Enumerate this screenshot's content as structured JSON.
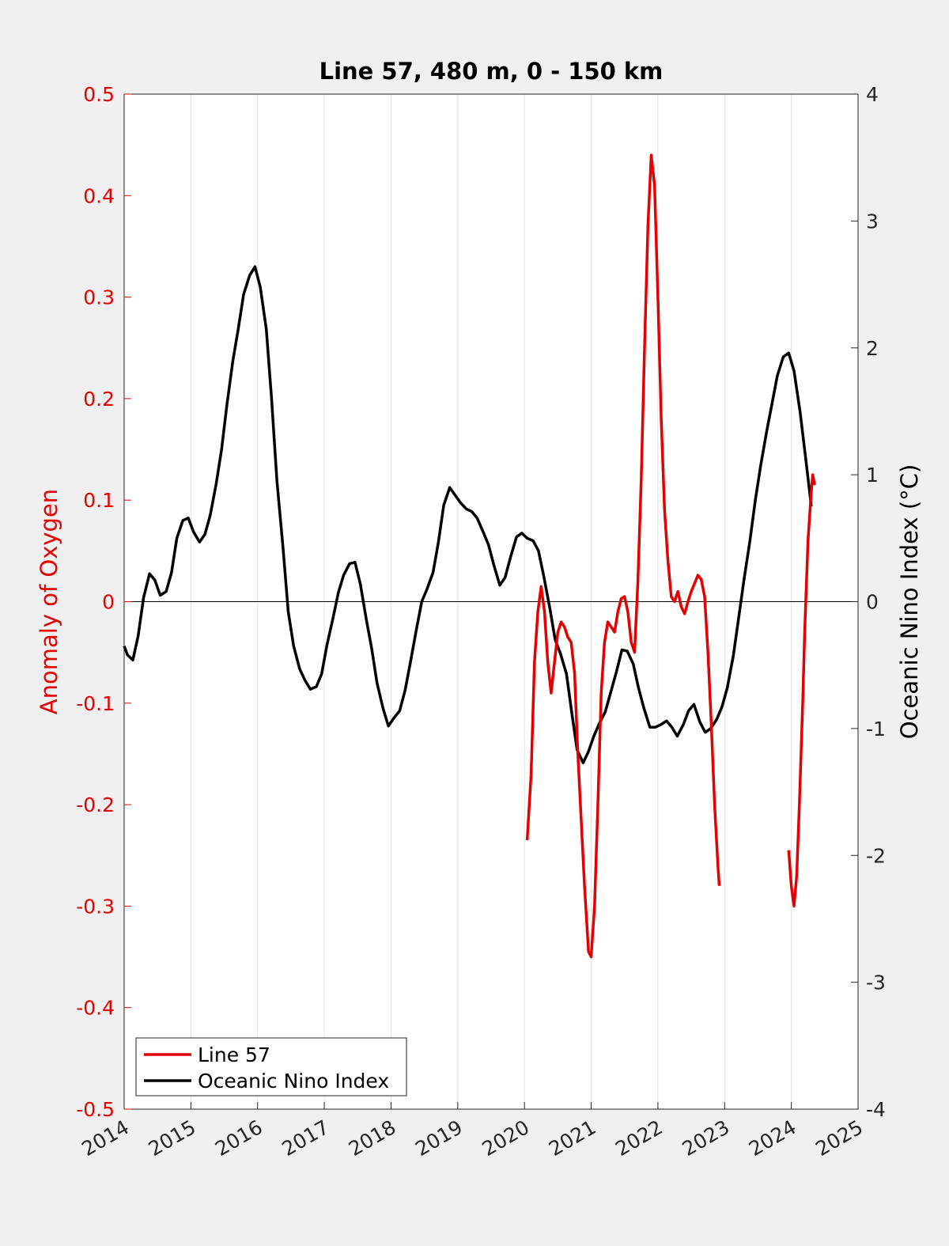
{
  "chart_data": {
    "type": "line",
    "title": "Line 57, 480 m, 0 - 150 km",
    "xlabel": "",
    "ylabel_left": "Anomaly of Oxygen",
    "ylabel_right": "Oceanic Nino Index (°C)",
    "xlim": [
      2014,
      2025
    ],
    "ylim_left": [
      -0.5,
      0.5
    ],
    "ylim_right": [
      -4,
      4
    ],
    "x_ticks": [
      "2014",
      "2015",
      "2016",
      "2017",
      "2018",
      "2019",
      "2020",
      "2021",
      "2022",
      "2023",
      "2024",
      "2025"
    ],
    "y_ticks_left": [
      "0.5",
      "0.4",
      "0.3",
      "0.2",
      "0.1",
      "0",
      "-0.1",
      "-0.2",
      "-0.3",
      "-0.4",
      "-0.5"
    ],
    "y_ticks_right": [
      "4",
      "3",
      "2",
      "1",
      "0",
      "-1",
      "-2",
      "-3",
      "-4"
    ],
    "grid": "vertical",
    "zero_line": true,
    "legend_position": "bottom-left",
    "colors": {
      "line57": "#e60000",
      "oni": "#000000",
      "left_axis": "#e60000",
      "right_axis": "#000000"
    },
    "series": [
      {
        "name": "Line 57",
        "axis": "left",
        "segments": [
          [
            [
              2020.04,
              -0.235
            ],
            [
              2020.1,
              -0.17
            ],
            [
              2020.15,
              -0.06
            ],
            [
              2020.2,
              -0.01
            ],
            [
              2020.25,
              0.015
            ],
            [
              2020.3,
              -0.01
            ],
            [
              2020.35,
              -0.06
            ],
            [
              2020.4,
              -0.09
            ],
            [
              2020.45,
              -0.06
            ],
            [
              2020.5,
              -0.03
            ],
            [
              2020.55,
              -0.02
            ],
            [
              2020.6,
              -0.025
            ],
            [
              2020.65,
              -0.035
            ],
            [
              2020.7,
              -0.04
            ],
            [
              2020.75,
              -0.07
            ],
            [
              2020.8,
              -0.15
            ],
            [
              2020.9,
              -0.28
            ],
            [
              2020.96,
              -0.345
            ],
            [
              2021.0,
              -0.35
            ],
            [
              2021.05,
              -0.3
            ],
            [
              2021.1,
              -0.2
            ],
            [
              2021.15,
              -0.09
            ],
            [
              2021.2,
              -0.04
            ],
            [
              2021.25,
              -0.02
            ],
            [
              2021.3,
              -0.025
            ],
            [
              2021.35,
              -0.03
            ],
            [
              2021.4,
              -0.01
            ],
            [
              2021.45,
              0.003
            ],
            [
              2021.5,
              0.005
            ],
            [
              2021.55,
              -0.01
            ],
            [
              2021.6,
              -0.04
            ],
            [
              2021.65,
              -0.05
            ],
            [
              2021.7,
              0.02
            ],
            [
              2021.75,
              0.12
            ],
            [
              2021.8,
              0.25
            ],
            [
              2021.85,
              0.37
            ],
            [
              2021.9,
              0.44
            ],
            [
              2021.95,
              0.41
            ],
            [
              2022.0,
              0.3
            ],
            [
              2022.05,
              0.18
            ],
            [
              2022.1,
              0.09
            ],
            [
              2022.15,
              0.04
            ],
            [
              2022.2,
              0.005
            ],
            [
              2022.25,
              0.0
            ],
            [
              2022.3,
              0.01
            ],
            [
              2022.35,
              -0.005
            ],
            [
              2022.4,
              -0.012
            ],
            [
              2022.45,
              0.0
            ],
            [
              2022.5,
              0.01
            ],
            [
              2022.55,
              0.018
            ],
            [
              2022.6,
              0.026
            ],
            [
              2022.65,
              0.022
            ],
            [
              2022.7,
              0.005
            ],
            [
              2022.75,
              -0.05
            ],
            [
              2022.8,
              -0.12
            ],
            [
              2022.85,
              -0.2
            ],
            [
              2022.9,
              -0.26
            ],
            [
              2022.92,
              -0.28
            ]
          ],
          [
            [
              2023.96,
              -0.245
            ],
            [
              2024.0,
              -0.28
            ],
            [
              2024.04,
              -0.3
            ],
            [
              2024.08,
              -0.27
            ],
            [
              2024.12,
              -0.2
            ],
            [
              2024.17,
              -0.1
            ],
            [
              2024.2,
              -0.03
            ],
            [
              2024.25,
              0.06
            ],
            [
              2024.29,
              0.1
            ],
            [
              2024.32,
              0.125
            ],
            [
              2024.35,
              0.115
            ]
          ]
        ]
      },
      {
        "name": "Oceanic Nino Index",
        "axis": "right",
        "points": [
          [
            2014.0,
            -0.35
          ],
          [
            2014.05,
            -0.42
          ],
          [
            2014.13,
            -0.46
          ],
          [
            2014.21,
            -0.27
          ],
          [
            2014.29,
            0.03
          ],
          [
            2014.38,
            0.22
          ],
          [
            2014.46,
            0.17
          ],
          [
            2014.54,
            0.05
          ],
          [
            2014.63,
            0.08
          ],
          [
            2014.71,
            0.23
          ],
          [
            2014.79,
            0.5
          ],
          [
            2014.88,
            0.64
          ],
          [
            2014.96,
            0.66
          ],
          [
            2015.04,
            0.55
          ],
          [
            2015.13,
            0.47
          ],
          [
            2015.21,
            0.53
          ],
          [
            2015.29,
            0.68
          ],
          [
            2015.38,
            0.93
          ],
          [
            2015.46,
            1.2
          ],
          [
            2015.54,
            1.55
          ],
          [
            2015.63,
            1.9
          ],
          [
            2015.71,
            2.15
          ],
          [
            2015.79,
            2.42
          ],
          [
            2015.88,
            2.57
          ],
          [
            2015.96,
            2.64
          ],
          [
            2016.04,
            2.48
          ],
          [
            2016.13,
            2.15
          ],
          [
            2016.21,
            1.6
          ],
          [
            2016.29,
            0.95
          ],
          [
            2016.38,
            0.43
          ],
          [
            2016.46,
            -0.08
          ],
          [
            2016.54,
            -0.35
          ],
          [
            2016.63,
            -0.53
          ],
          [
            2016.71,
            -0.62
          ],
          [
            2016.79,
            -0.69
          ],
          [
            2016.88,
            -0.67
          ],
          [
            2016.96,
            -0.57
          ],
          [
            2017.04,
            -0.34
          ],
          [
            2017.13,
            -0.13
          ],
          [
            2017.21,
            0.07
          ],
          [
            2017.29,
            0.21
          ],
          [
            2017.38,
            0.3
          ],
          [
            2017.46,
            0.31
          ],
          [
            2017.54,
            0.14
          ],
          [
            2017.63,
            -0.14
          ],
          [
            2017.71,
            -0.37
          ],
          [
            2017.79,
            -0.64
          ],
          [
            2017.88,
            -0.84
          ],
          [
            2017.96,
            -0.98
          ],
          [
            2018.04,
            -0.92
          ],
          [
            2018.13,
            -0.86
          ],
          [
            2018.21,
            -0.7
          ],
          [
            2018.29,
            -0.48
          ],
          [
            2018.38,
            -0.22
          ],
          [
            2018.46,
            0.0
          ],
          [
            2018.54,
            0.1
          ],
          [
            2018.63,
            0.23
          ],
          [
            2018.71,
            0.47
          ],
          [
            2018.79,
            0.76
          ],
          [
            2018.88,
            0.9
          ],
          [
            2018.96,
            0.84
          ],
          [
            2019.04,
            0.78
          ],
          [
            2019.13,
            0.73
          ],
          [
            2019.21,
            0.71
          ],
          [
            2019.29,
            0.66
          ],
          [
            2019.38,
            0.55
          ],
          [
            2019.46,
            0.45
          ],
          [
            2019.54,
            0.29
          ],
          [
            2019.63,
            0.13
          ],
          [
            2019.71,
            0.19
          ],
          [
            2019.79,
            0.35
          ],
          [
            2019.88,
            0.51
          ],
          [
            2019.96,
            0.54
          ],
          [
            2020.04,
            0.5
          ],
          [
            2020.13,
            0.48
          ],
          [
            2020.21,
            0.4
          ],
          [
            2020.29,
            0.2
          ],
          [
            2020.38,
            -0.05
          ],
          [
            2020.46,
            -0.3
          ],
          [
            2020.54,
            -0.41
          ],
          [
            2020.63,
            -0.57
          ],
          [
            2020.71,
            -0.88
          ],
          [
            2020.79,
            -1.17
          ],
          [
            2020.88,
            -1.27
          ],
          [
            2020.96,
            -1.18
          ],
          [
            2021.04,
            -1.06
          ],
          [
            2021.13,
            -0.95
          ],
          [
            2021.21,
            -0.87
          ],
          [
            2021.29,
            -0.72
          ],
          [
            2021.38,
            -0.55
          ],
          [
            2021.46,
            -0.38
          ],
          [
            2021.54,
            -0.39
          ],
          [
            2021.63,
            -0.49
          ],
          [
            2021.71,
            -0.68
          ],
          [
            2021.79,
            -0.84
          ],
          [
            2021.88,
            -0.99
          ],
          [
            2021.96,
            -0.99
          ],
          [
            2022.04,
            -0.97
          ],
          [
            2022.13,
            -0.94
          ],
          [
            2022.21,
            -0.99
          ],
          [
            2022.29,
            -1.06
          ],
          [
            2022.38,
            -0.97
          ],
          [
            2022.46,
            -0.86
          ],
          [
            2022.54,
            -0.81
          ],
          [
            2022.63,
            -0.95
          ],
          [
            2022.71,
            -1.03
          ],
          [
            2022.79,
            -1.0
          ],
          [
            2022.88,
            -0.93
          ],
          [
            2022.96,
            -0.83
          ],
          [
            2023.04,
            -0.68
          ],
          [
            2023.13,
            -0.43
          ],
          [
            2023.21,
            -0.13
          ],
          [
            2023.29,
            0.17
          ],
          [
            2023.38,
            0.48
          ],
          [
            2023.46,
            0.8
          ],
          [
            2023.54,
            1.07
          ],
          [
            2023.63,
            1.34
          ],
          [
            2023.71,
            1.56
          ],
          [
            2023.79,
            1.78
          ],
          [
            2023.88,
            1.93
          ],
          [
            2023.96,
            1.96
          ],
          [
            2024.04,
            1.82
          ],
          [
            2024.13,
            1.5
          ],
          [
            2024.21,
            1.15
          ],
          [
            2024.3,
            0.75
          ]
        ]
      }
    ]
  }
}
